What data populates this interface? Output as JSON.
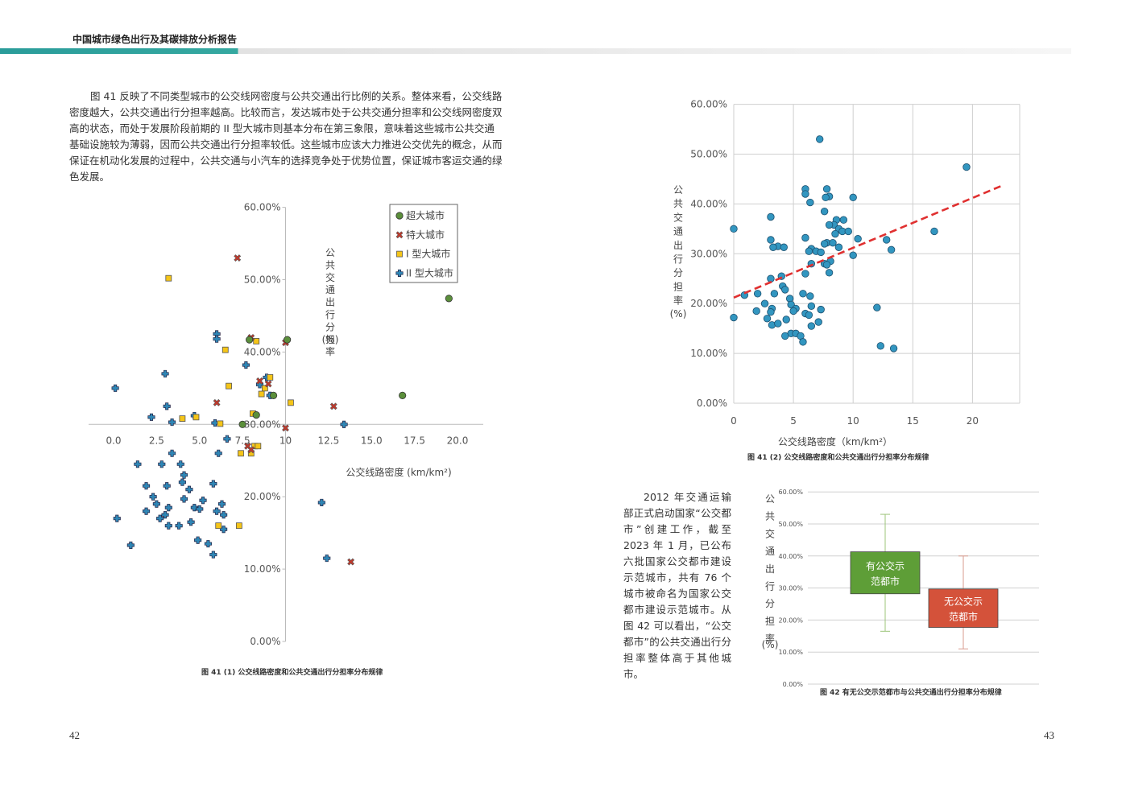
{
  "header": {
    "title": "中国城市绿色出行及其碳排放分析报告"
  },
  "text": {
    "p1": "图 41 反映了不同类型城市的公交线网密度与公共交通出行比例的关系。整体来看，公交线路密度越大，公共交通出行分担率越高。比较而言，发达城市处于公共交通分担率和公交线网密度双高的状态，而处于发展阶段前期的 II 型大城市则基本分布在第三象限，意味着这些城市公共交通基础设施较为薄弱，因而公共交通出行分担率较低。这些城市应该大力推进公交优先的概念，从而保证在机动化发展的过程中，公共交通与小汽车的选择竞争处于优势位置，保证城市客运交通的绿色发展。",
    "p2": "2012 年交通运输部正式启动国家“公交都市”创建工作，截至 2023 年 1 月，已公布六批国家公交都市建设示范城市，共有 76 个城市被命名为国家公交都市建设示范城市。从图 42 可以看出，“公交都市”的公共交通出行分担率整体高于其他城市。"
  },
  "captions": {
    "fig41_1": "图 41 (1) 公交线路密度和公共交通出行分担率分布规律",
    "fig41_2": "图 41 (2) 公交线路密度和公共交通出行分担率分布规律",
    "fig42": "图 42 有无公交示范都市与公共交通出行分担率分布规律"
  },
  "page_numbers": {
    "left": "42",
    "right": "43"
  },
  "colors": {
    "super": "#5b8f3b",
    "mega": "#c0392b",
    "type1": "#f5c518",
    "type2": "#2f86b5",
    "scatter2": "#3296c0",
    "trend": "#e03030",
    "box1": "#5e9e37",
    "box2": "#d4523a",
    "header_accent": "#2a9c9a"
  },
  "chart_data": [
    {
      "type": "scatter",
      "title": "",
      "xlabel": "公交线路密度 (km/km²)",
      "ylabel": "公共交通出行分担率 (%)",
      "x_ticks": [
        "0.0",
        "2.5",
        "5.0",
        "7.5",
        "10",
        "12.5",
        "15.0",
        "17.5",
        "20.0"
      ],
      "y_ticks": [
        "0.00%",
        "10.00%",
        "20.00%",
        "30.00%",
        "40.00%",
        "50.00%",
        "60.00%"
      ],
      "xlim": [
        0,
        20
      ],
      "ylim": [
        0,
        0.6
      ],
      "x_axis_at_y": 0.3,
      "legend_position": "top-right",
      "series": [
        {
          "name": "超大城市",
          "marker": "circle",
          "color": "#5b8f3b",
          "points": [
            [
              19.5,
              0.474
            ],
            [
              16.8,
              0.34
            ],
            [
              7.5,
              0.3
            ],
            [
              8.3,
              0.313
            ],
            [
              9.3,
              0.34
            ],
            [
              10.1,
              0.417
            ],
            [
              7.9,
              0.417
            ]
          ]
        },
        {
          "name": "特大城市",
          "marker": "x",
          "color": "#c0392b",
          "points": [
            [
              7.2,
              0.53
            ],
            [
              8.0,
              0.42
            ],
            [
              10.0,
              0.413
            ],
            [
              8.5,
              0.36
            ],
            [
              9.0,
              0.356
            ],
            [
              6.0,
              0.33
            ],
            [
              12.8,
              0.325
            ],
            [
              10.0,
              0.295
            ],
            [
              7.8,
              0.27
            ],
            [
              8.0,
              0.265
            ],
            [
              13.8,
              0.11
            ]
          ]
        },
        {
          "name": "I 型大城市",
          "marker": "square",
          "color": "#f5c518",
          "points": [
            [
              3.2,
              0.502
            ],
            [
              8.3,
              0.415
            ],
            [
              6.5,
              0.403
            ],
            [
              9.1,
              0.365
            ],
            [
              6.7,
              0.353
            ],
            [
              8.8,
              0.35
            ],
            [
              8.6,
              0.342
            ],
            [
              10.3,
              0.33
            ],
            [
              8.1,
              0.315
            ],
            [
              4.0,
              0.308
            ],
            [
              4.8,
              0.31
            ],
            [
              6.2,
              0.301
            ],
            [
              8.2,
              0.27
            ],
            [
              8.4,
              0.27
            ],
            [
              7.4,
              0.26
            ],
            [
              8.0,
              0.26
            ],
            [
              7.3,
              0.16
            ],
            [
              6.1,
              0.16
            ]
          ]
        },
        {
          "name": "II 型大城市",
          "marker": "cross",
          "color": "#2f86b5",
          "points": [
            [
              0.1,
              0.35
            ],
            [
              3.0,
              0.37
            ],
            [
              6.0,
              0.425
            ],
            [
              6.0,
              0.418
            ],
            [
              7.7,
              0.382
            ],
            [
              8.9,
              0.365
            ],
            [
              8.5,
              0.355
            ],
            [
              9.1,
              0.34
            ],
            [
              3.1,
              0.325
            ],
            [
              4.7,
              0.312
            ],
            [
              2.2,
              0.31
            ],
            [
              3.4,
              0.303
            ],
            [
              5.9,
              0.302
            ],
            [
              13.4,
              0.3
            ],
            [
              6.6,
              0.28
            ],
            [
              3.4,
              0.26
            ],
            [
              6.1,
              0.26
            ],
            [
              1.4,
              0.245
            ],
            [
              3.9,
              0.245
            ],
            [
              2.8,
              0.245
            ],
            [
              4.1,
              0.23
            ],
            [
              4.0,
              0.22
            ],
            [
              3.1,
              0.215
            ],
            [
              5.8,
              0.218
            ],
            [
              1.9,
              0.215
            ],
            [
              4.4,
              0.21
            ],
            [
              2.3,
              0.2
            ],
            [
              4.1,
              0.197
            ],
            [
              5.2,
              0.195
            ],
            [
              6.3,
              0.19
            ],
            [
              2.5,
              0.19
            ],
            [
              4.7,
              0.185
            ],
            [
              3.2,
              0.185
            ],
            [
              5.0,
              0.183
            ],
            [
              6.0,
              0.18
            ],
            [
              1.9,
              0.18
            ],
            [
              6.4,
              0.175
            ],
            [
              3.0,
              0.175
            ],
            [
              0.2,
              0.17
            ],
            [
              2.7,
              0.17
            ],
            [
              4.5,
              0.165
            ],
            [
              3.2,
              0.16
            ],
            [
              3.8,
              0.16
            ],
            [
              6.4,
              0.155
            ],
            [
              4.9,
              0.14
            ],
            [
              5.5,
              0.135
            ],
            [
              1.0,
              0.133
            ],
            [
              5.8,
              0.12
            ],
            [
              12.1,
              0.192
            ],
            [
              12.4,
              0.115
            ]
          ]
        }
      ]
    },
    {
      "type": "scatter",
      "title": "",
      "xlabel": "公交线路密度（km/km²）",
      "ylabel": "公共交通出行分担率(%)",
      "x_ticks": [
        "0",
        "5",
        "10",
        "15",
        "20"
      ],
      "y_ticks": [
        "0.00%",
        "10.00%",
        "20.00%",
        "30.00%",
        "40.00%",
        "50.00%",
        "60.00%"
      ],
      "xlim": [
        0,
        23.5
      ],
      "ylim": [
        0,
        0.6
      ],
      "grid": true,
      "trendline": {
        "style": "dashed",
        "from": [
          0,
          0.212
        ],
        "to": [
          22.5,
          0.437
        ]
      },
      "points": [
        [
          7.2,
          0.53
        ],
        [
          19.5,
          0.474
        ],
        [
          6.0,
          0.43
        ],
        [
          7.8,
          0.43
        ],
        [
          6.0,
          0.42
        ],
        [
          8.0,
          0.415
        ],
        [
          7.7,
          0.413
        ],
        [
          10.0,
          0.413
        ],
        [
          6.4,
          0.403
        ],
        [
          7.6,
          0.385
        ],
        [
          3.1,
          0.374
        ],
        [
          9.2,
          0.368
        ],
        [
          8.6,
          0.368
        ],
        [
          8.4,
          0.358
        ],
        [
          8.0,
          0.358
        ],
        [
          8.8,
          0.35
        ],
        [
          0.0,
          0.35
        ],
        [
          9.1,
          0.345
        ],
        [
          9.6,
          0.345
        ],
        [
          8.5,
          0.34
        ],
        [
          16.8,
          0.345
        ],
        [
          6.0,
          0.332
        ],
        [
          3.1,
          0.328
        ],
        [
          10.4,
          0.33
        ],
        [
          12.8,
          0.328
        ],
        [
          7.8,
          0.322
        ],
        [
          8.3,
          0.322
        ],
        [
          7.6,
          0.32
        ],
        [
          3.7,
          0.315
        ],
        [
          4.2,
          0.313
        ],
        [
          3.3,
          0.313
        ],
        [
          13.2,
          0.308
        ],
        [
          8.8,
          0.313
        ],
        [
          6.5,
          0.31
        ],
        [
          6.3,
          0.305
        ],
        [
          6.9,
          0.305
        ],
        [
          7.3,
          0.303
        ],
        [
          10.0,
          0.297
        ],
        [
          8.1,
          0.285
        ],
        [
          6.5,
          0.28
        ],
        [
          7.6,
          0.28
        ],
        [
          7.8,
          0.278
        ],
        [
          6.0,
          0.26
        ],
        [
          8.0,
          0.262
        ],
        [
          3.1,
          0.25
        ],
        [
          4.0,
          0.255
        ],
        [
          4.1,
          0.235
        ],
        [
          4.3,
          0.228
        ],
        [
          3.4,
          0.22
        ],
        [
          2.0,
          0.22
        ],
        [
          0.9,
          0.217
        ],
        [
          5.8,
          0.22
        ],
        [
          6.4,
          0.215
        ],
        [
          4.7,
          0.21
        ],
        [
          2.6,
          0.2
        ],
        [
          4.8,
          0.198
        ],
        [
          6.5,
          0.195
        ],
        [
          3.2,
          0.19
        ],
        [
          12.0,
          0.192
        ],
        [
          7.3,
          0.188
        ],
        [
          5.2,
          0.19
        ],
        [
          1.9,
          0.185
        ],
        [
          6.0,
          0.18
        ],
        [
          3.1,
          0.183
        ],
        [
          5.0,
          0.185
        ],
        [
          6.3,
          0.177
        ],
        [
          2.8,
          0.17
        ],
        [
          4.4,
          0.168
        ],
        [
          0.0,
          0.172
        ],
        [
          7.1,
          0.163
        ],
        [
          3.2,
          0.157
        ],
        [
          3.7,
          0.16
        ],
        [
          6.5,
          0.155
        ],
        [
          4.8,
          0.14
        ],
        [
          5.2,
          0.14
        ],
        [
          4.3,
          0.135
        ],
        [
          5.6,
          0.135
        ],
        [
          5.8,
          0.123
        ],
        [
          12.3,
          0.115
        ],
        [
          13.4,
          0.11
        ]
      ]
    },
    {
      "type": "box",
      "title": "",
      "xlabel": "",
      "ylabel": "公共交通出行分担率(%)",
      "y_ticks": [
        "0.00%",
        "10.00%",
        "20.00%",
        "30.00%",
        "40.00%",
        "50.00%",
        "60.00%"
      ],
      "ylim": [
        0,
        0.6
      ],
      "boxes": [
        {
          "name": "有公交示范都市",
          "label_line1": "有公交示",
          "label_line2": "范都市",
          "color": "#5e9e37",
          "min": 0.165,
          "q1": 0.282,
          "q3": 0.413,
          "max": 0.53
        },
        {
          "name": "无公交示范都市",
          "label_line1": "无公交示",
          "label_line2": "范都市",
          "color": "#d4523a",
          "min": 0.11,
          "q1": 0.177,
          "q3": 0.297,
          "max": 0.4
        }
      ]
    }
  ]
}
